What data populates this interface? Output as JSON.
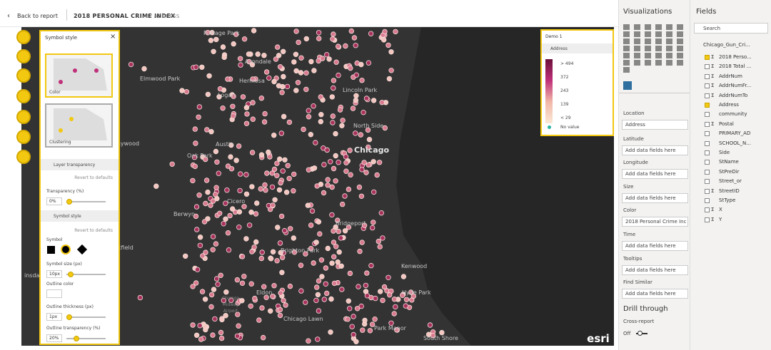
{
  "header": {
    "back": "Back to report",
    "title": "2018 PERSONAL CRIME INDEX",
    "subtitle": "BY ADDRESS"
  },
  "symbol_panel": {
    "title": "Symbol style",
    "thumb_color": "Color",
    "thumb_clustering": "Clustering",
    "layer_transparency": "Layer transparency",
    "revert": "Revert to defaults",
    "transparency_label": "Transparency (%)",
    "transparency_value": "0%",
    "symbol_style": "Symbol style",
    "revert2": "Revert to defaults",
    "symbol": "Symbol",
    "symbol_size_label": "Symbol size (px)",
    "symbol_size_value": "10px",
    "outline_color": "Outline color",
    "outline_thickness_label": "Outline thickness (px)",
    "outline_thickness_value": "1px",
    "outline_transparency_label": "Outline transparency (%)",
    "outline_transparency_value": "20%"
  },
  "map": {
    "labels": [
      "Portage Park",
      "Avondale",
      "Elmwood Park",
      "Hermosa",
      "Logan",
      "Lincoln Park",
      "North Side",
      "Chicago",
      "Austin",
      "Oak Park",
      "aywood",
      "Cicero",
      "Berwyn",
      "Bridgeport",
      "okfield",
      "Brighton Park",
      "Kenwood",
      "insdale",
      "Hyde Park",
      "Eldon",
      "Chicago Midway Airport",
      "Chicago Lawn",
      "Park Manor",
      "South Shore"
    ],
    "attribution": "esri"
  },
  "legend": {
    "title": "Demo 1",
    "layer": "Address",
    "stops": [
      "> 494",
      "372",
      "243",
      "139",
      "< 29"
    ],
    "no_value": "No value"
  },
  "visualizations": {
    "title": "Visualizations",
    "wells": [
      {
        "label": "Location",
        "value": "Address"
      },
      {
        "label": "Latitude",
        "value": "Add data fields here"
      },
      {
        "label": "Longitude",
        "value": "Add data fields here"
      },
      {
        "label": "Size",
        "value": "Add data fields here"
      },
      {
        "label": "Color",
        "value": "2018 Personal Crime Inc"
      },
      {
        "label": "Time",
        "value": "Add data fields here"
      },
      {
        "label": "Tooltips",
        "value": "Add data fields here"
      },
      {
        "label": "Find Similar",
        "value": "Add data fields here"
      }
    ],
    "drill_through": "Drill through",
    "cross_report": "Cross-report",
    "toggle": "Off"
  },
  "fields": {
    "title": "Fields",
    "search": "Search",
    "table": "Chicago_Gun_Cri...",
    "items": [
      {
        "name": "2018 Perso...",
        "icon": "Σ",
        "checked": true
      },
      {
        "name": "2018 Total ...",
        "icon": "Σ"
      },
      {
        "name": "AddrNum",
        "icon": "Σ"
      },
      {
        "name": "AddrNumFr...",
        "icon": "Σ"
      },
      {
        "name": "AddrNumTo",
        "icon": "Σ"
      },
      {
        "name": "Address",
        "checked": true
      },
      {
        "name": "community"
      },
      {
        "name": "Postal",
        "icon": "Σ"
      },
      {
        "name": "PRIMARY_AD"
      },
      {
        "name": "SCHOOL_N..."
      },
      {
        "name": "Side"
      },
      {
        "name": "StName"
      },
      {
        "name": "StPreDir"
      },
      {
        "name": "Street_or"
      },
      {
        "name": "StreetID",
        "icon": "Σ"
      },
      {
        "name": "StType"
      },
      {
        "name": "X",
        "icon": "Σ"
      },
      {
        "name": "Y",
        "icon": "Σ"
      }
    ]
  }
}
